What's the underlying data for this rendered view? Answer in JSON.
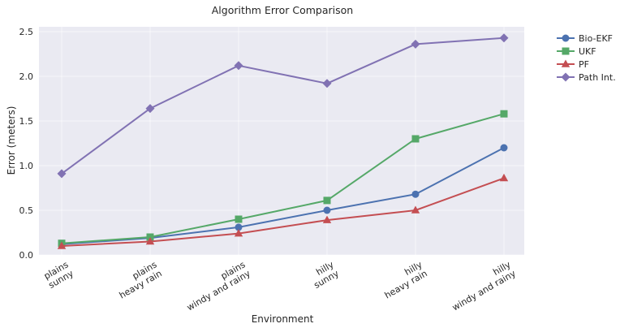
{
  "chart_data": {
    "type": "line",
    "title": "Algorithm Error Comparison",
    "xlabel": "Environment",
    "ylabel": "Error (meters)",
    "ylim": [
      0,
      2.5
    ],
    "yticks": [
      "0.0",
      "0.5",
      "1.0",
      "1.5",
      "2.0",
      "2.5"
    ],
    "grid": true,
    "legend_position": "upper-right-outside",
    "categories": [
      [
        "plains",
        "sunny"
      ],
      [
        "plains",
        "heavy rain"
      ],
      [
        "plains",
        "windy and rainy"
      ],
      [
        "hilly",
        "sunny"
      ],
      [
        "hilly",
        "heavy rain"
      ],
      [
        "hilly",
        "windy and rainy"
      ]
    ],
    "series": [
      {
        "name": "Bio-EKF",
        "color": "#4c72b0",
        "marker": "circle",
        "values": [
          0.12,
          0.19,
          0.31,
          0.5,
          0.68,
          1.2
        ]
      },
      {
        "name": "UKF",
        "color": "#55a868",
        "marker": "square",
        "values": [
          0.13,
          0.2,
          0.4,
          0.61,
          1.3,
          1.58
        ]
      },
      {
        "name": "PF",
        "color": "#c44e52",
        "marker": "triangle",
        "values": [
          0.1,
          0.15,
          0.24,
          0.39,
          0.5,
          0.86
        ]
      },
      {
        "name": "Path Int.",
        "color": "#8172b3",
        "marker": "diamond",
        "values": [
          0.91,
          1.64,
          2.12,
          1.92,
          2.36,
          2.43
        ]
      }
    ]
  }
}
